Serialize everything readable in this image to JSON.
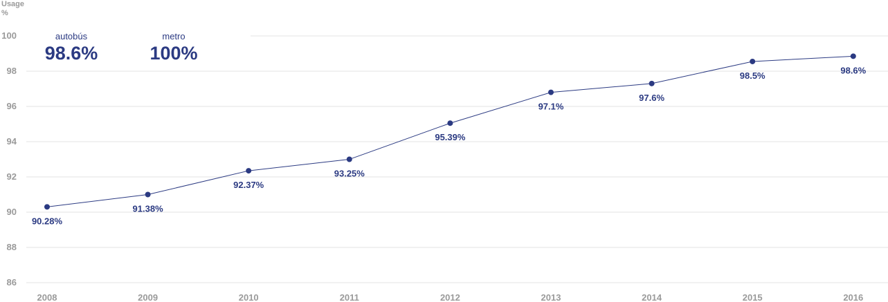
{
  "chart_data": {
    "type": "line",
    "ylabel": "Usage",
    "yunit": "%",
    "x": [
      "2008",
      "2009",
      "2010",
      "2011",
      "2012",
      "2013",
      "2014",
      "2015",
      "2016"
    ],
    "series": [
      {
        "values": [
          90.28,
          91.38,
          92.37,
          93.25,
          95.39,
          97.1,
          97.6,
          98.5,
          98.6
        ],
        "plotted_y": [
          90.3,
          91.0,
          92.35,
          93.0,
          95.05,
          96.8,
          97.3,
          98.55,
          98.85
        ],
        "labels": [
          "90.28%",
          "91.38%",
          "92.37%",
          "93.25%",
          "95.39%",
          "97.1%",
          "97.6%",
          "98.5%",
          "98.6%"
        ]
      }
    ],
    "yticks": [
      86,
      88,
      90,
      92,
      94,
      96,
      98,
      100
    ],
    "ylim": [
      86,
      100
    ],
    "grid": true,
    "colors": {
      "line": "#2b3a82",
      "grid": "#e3e3e3",
      "axis_text": "#9a9a9a"
    }
  },
  "stats": [
    {
      "label": "autobús",
      "value": "98.6%"
    },
    {
      "label": "metro",
      "value": "100%"
    }
  ]
}
